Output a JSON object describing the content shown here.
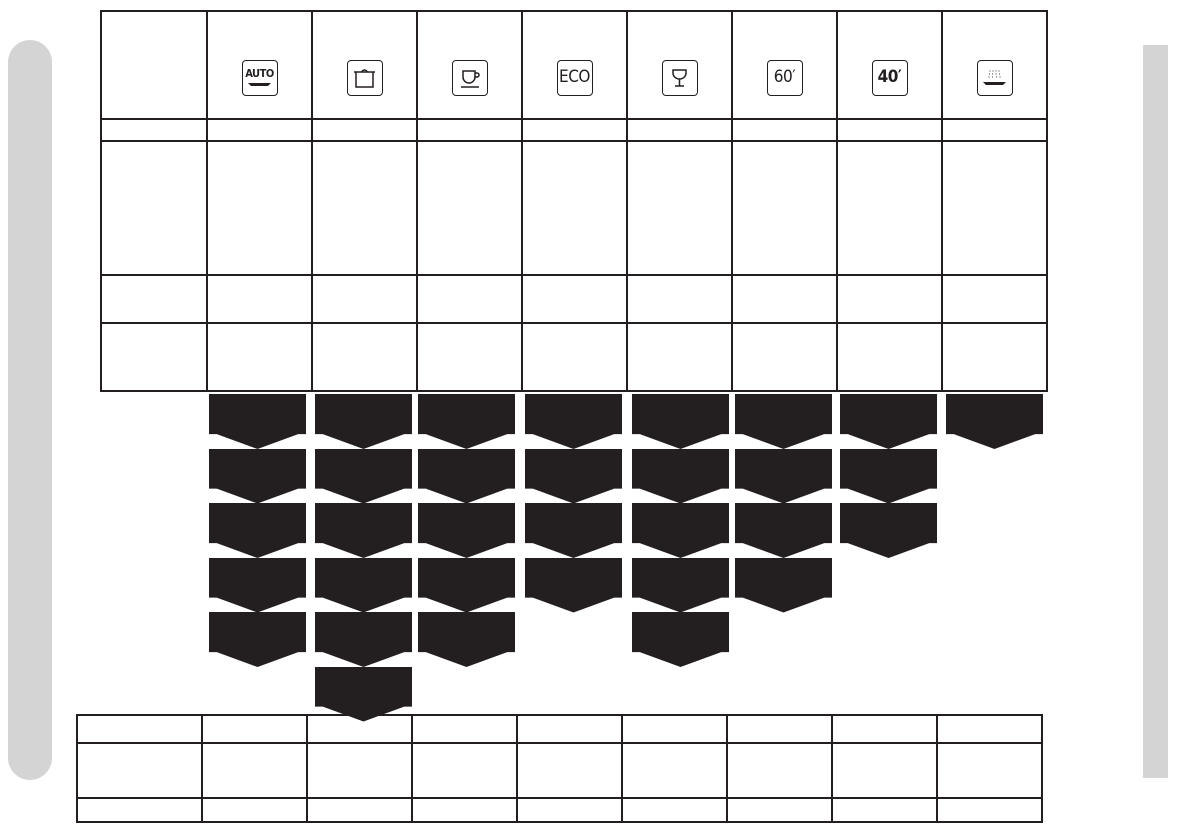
{
  "programs": [
    {
      "icon": "auto-program-icon",
      "label": "AUTO",
      "levels": 5
    },
    {
      "icon": "pot-intensive-icon",
      "label": "",
      "levels": 6
    },
    {
      "icon": "cup-delicate-icon",
      "label": "",
      "levels": 5
    },
    {
      "icon": "eco-program-icon",
      "label": "ECO",
      "levels": 4
    },
    {
      "icon": "glass-program-icon",
      "label": "",
      "levels": 5
    },
    {
      "icon": "quick-60-icon",
      "label": "60′",
      "levels": 4
    },
    {
      "icon": "quick-40-icon",
      "label": "40′",
      "levels": 3
    },
    {
      "icon": "rinse-program-icon",
      "label": "",
      "levels": 1
    }
  ],
  "colors": {
    "ink": "#231f20",
    "sidebar": "#d4d4d4"
  }
}
